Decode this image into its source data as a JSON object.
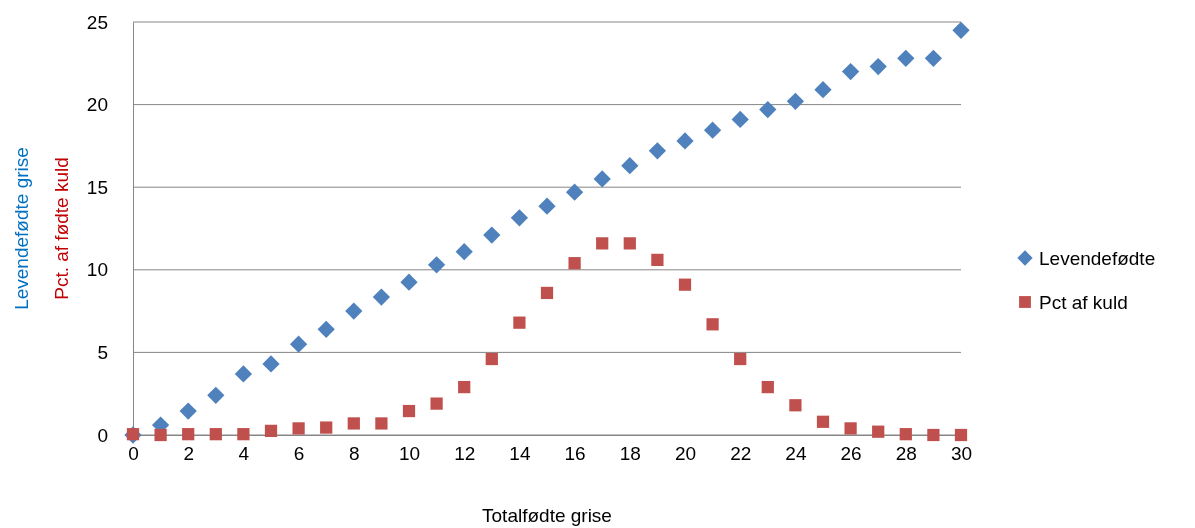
{
  "chart_data": {
    "type": "scatter",
    "xlabel": "Totalfødte grise",
    "ylabel": "Levendefødte grise",
    "y2label": "Pct. af fødte kuld",
    "x": [
      0,
      1,
      2,
      3,
      4,
      5,
      6,
      7,
      8,
      9,
      10,
      11,
      12,
      13,
      14,
      15,
      16,
      17,
      18,
      19,
      20,
      21,
      22,
      23,
      24,
      25,
      26,
      27,
      28,
      29,
      30
    ],
    "series": [
      {
        "name": "Levendefødte",
        "color": "#4f81bd",
        "marker": "diamond",
        "values": [
          0,
          0.6,
          1.45,
          2.4,
          3.7,
          4.3,
          5.5,
          6.4,
          7.5,
          8.35,
          9.25,
          10.3,
          11.1,
          12.1,
          13.15,
          13.85,
          14.7,
          15.5,
          16.3,
          17.2,
          17.8,
          18.45,
          19.1,
          19.7,
          20.2,
          20.9,
          22.0,
          22.3,
          22.8,
          22.8,
          24.5
        ]
      },
      {
        "name": "Pct af kuld",
        "color": "#c0504d",
        "marker": "square",
        "values": [
          0.05,
          0,
          0.05,
          0.05,
          0.05,
          0.25,
          0.4,
          0.45,
          0.7,
          0.7,
          1.45,
          1.9,
          2.9,
          4.6,
          6.8,
          8.6,
          10.4,
          11.6,
          11.6,
          10.6,
          9.1,
          6.7,
          4.6,
          2.9,
          1.8,
          0.8,
          0.4,
          0.2,
          0.05,
          0,
          0
        ]
      }
    ],
    "xlim": [
      0,
      30
    ],
    "xticks": [
      0,
      2,
      4,
      6,
      8,
      10,
      12,
      14,
      16,
      18,
      20,
      22,
      24,
      26,
      28,
      30
    ],
    "ylim": [
      0,
      25
    ],
    "yticks": [
      0,
      5,
      10,
      15,
      20,
      25
    ],
    "grid": "y",
    "legend": "right"
  }
}
